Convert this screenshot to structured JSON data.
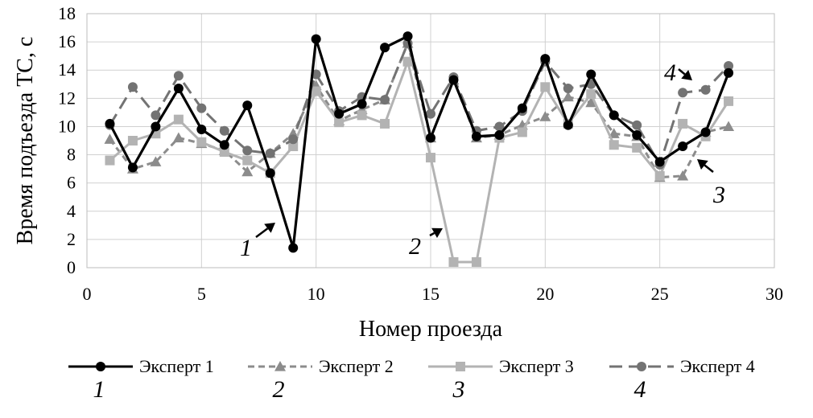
{
  "chart_data": {
    "type": "line",
    "title": "",
    "xlabel": "Номер проезда",
    "ylabel": "Время подъезда ТС, с",
    "xlim": [
      0,
      30
    ],
    "ylim": [
      0,
      18
    ],
    "xticks": [
      "0",
      "5",
      "10",
      "15",
      "20",
      "25",
      "30"
    ],
    "yticks": [
      "0",
      "2",
      "4",
      "6",
      "8",
      "10",
      "12",
      "14",
      "16",
      "18"
    ],
    "grid": true,
    "legend_position": "bottom",
    "x": [
      1,
      2,
      3,
      4,
      5,
      6,
      7,
      8,
      9,
      10,
      11,
      12,
      13,
      14,
      15,
      16,
      17,
      18,
      19,
      20,
      21,
      22,
      23,
      24,
      25,
      26,
      27,
      28
    ],
    "series": [
      {
        "name": "Эксперт 1",
        "number": "1",
        "color": "#000000",
        "dash": "solid",
        "marker": "circle",
        "values": [
          10.2,
          7.1,
          10.0,
          12.7,
          9.8,
          8.7,
          11.5,
          6.7,
          1.4,
          16.2,
          10.9,
          11.6,
          15.6,
          16.4,
          9.2,
          13.3,
          9.3,
          9.4,
          11.3,
          14.8,
          10.1,
          13.7,
          10.8,
          9.4,
          7.5,
          8.6,
          9.6,
          13.8
        ]
      },
      {
        "name": "Эксперт 2",
        "number": "2",
        "color": "#8c8c8c",
        "dash": "dashed",
        "marker": "triangle",
        "values": [
          9.1,
          7.0,
          7.5,
          9.2,
          8.8,
          8.3,
          6.8,
          8.1,
          9.5,
          12.9,
          10.4,
          11.2,
          11.9,
          15.9,
          9.2,
          13.3,
          9.2,
          9.4,
          10.1,
          10.7,
          12.1,
          11.7,
          9.5,
          9.3,
          6.4,
          6.5,
          9.6,
          10.0
        ]
      },
      {
        "name": "Эксперт 3",
        "number": "3",
        "color": "#b3b3b3",
        "dash": "solid",
        "marker": "square",
        "values": [
          7.6,
          9.0,
          9.5,
          10.5,
          8.9,
          8.2,
          7.6,
          6.7,
          8.6,
          12.5,
          10.3,
          10.8,
          10.2,
          14.6,
          7.8,
          0.4,
          0.4,
          9.2,
          9.6,
          12.8,
          10.2,
          12.3,
          8.7,
          8.5,
          6.5,
          10.2,
          9.3,
          11.8
        ]
      },
      {
        "name": "Эксперт 4",
        "number": "4",
        "color": "#737373",
        "dash": "longdash",
        "marker": "circle",
        "values": [
          10.1,
          12.8,
          10.8,
          13.6,
          11.3,
          9.7,
          8.3,
          8.1,
          9.1,
          13.7,
          11.1,
          12.1,
          11.9,
          15.9,
          10.9,
          13.5,
          9.7,
          10.0,
          11.1,
          14.6,
          12.7,
          13.0,
          10.8,
          10.1,
          7.3,
          12.4,
          12.6,
          14.3
        ]
      }
    ],
    "annotations": [
      {
        "text": "1",
        "x": 8,
        "y": 3.2
      },
      {
        "text": "2",
        "x": 15.2,
        "y": 2.7
      },
      {
        "text": "3",
        "x": 26.6,
        "y": 7.3
      },
      {
        "text": "4",
        "x": 26.3,
        "y": 13.0
      }
    ]
  }
}
